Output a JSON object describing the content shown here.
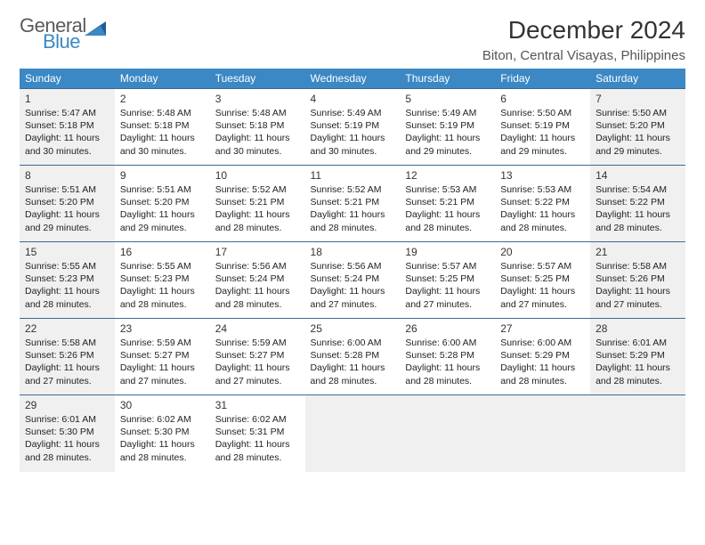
{
  "logo": {
    "word1": "General",
    "word2": "Blue",
    "word1_color": "#5a5a5a",
    "word2_color": "#3b88c4"
  },
  "title": "December 2024",
  "location": "Biton, Central Visayas, Philippines",
  "header_bg": "#3b88c4",
  "row_border": "#3b6a94",
  "shaded_bg": "#f0f0f0",
  "week_headers": [
    "Sunday",
    "Monday",
    "Tuesday",
    "Wednesday",
    "Thursday",
    "Friday",
    "Saturday"
  ],
  "weeks": [
    [
      {
        "n": "1",
        "shaded": true,
        "sr": "5:47 AM",
        "ss": "5:18 PM",
        "dl": "11 hours and 30 minutes."
      },
      {
        "n": "2",
        "shaded": false,
        "sr": "5:48 AM",
        "ss": "5:18 PM",
        "dl": "11 hours and 30 minutes."
      },
      {
        "n": "3",
        "shaded": false,
        "sr": "5:48 AM",
        "ss": "5:18 PM",
        "dl": "11 hours and 30 minutes."
      },
      {
        "n": "4",
        "shaded": false,
        "sr": "5:49 AM",
        "ss": "5:19 PM",
        "dl": "11 hours and 30 minutes."
      },
      {
        "n": "5",
        "shaded": false,
        "sr": "5:49 AM",
        "ss": "5:19 PM",
        "dl": "11 hours and 29 minutes."
      },
      {
        "n": "6",
        "shaded": false,
        "sr": "5:50 AM",
        "ss": "5:19 PM",
        "dl": "11 hours and 29 minutes."
      },
      {
        "n": "7",
        "shaded": true,
        "sr": "5:50 AM",
        "ss": "5:20 PM",
        "dl": "11 hours and 29 minutes."
      }
    ],
    [
      {
        "n": "8",
        "shaded": true,
        "sr": "5:51 AM",
        "ss": "5:20 PM",
        "dl": "11 hours and 29 minutes."
      },
      {
        "n": "9",
        "shaded": false,
        "sr": "5:51 AM",
        "ss": "5:20 PM",
        "dl": "11 hours and 29 minutes."
      },
      {
        "n": "10",
        "shaded": false,
        "sr": "5:52 AM",
        "ss": "5:21 PM",
        "dl": "11 hours and 28 minutes."
      },
      {
        "n": "11",
        "shaded": false,
        "sr": "5:52 AM",
        "ss": "5:21 PM",
        "dl": "11 hours and 28 minutes."
      },
      {
        "n": "12",
        "shaded": false,
        "sr": "5:53 AM",
        "ss": "5:21 PM",
        "dl": "11 hours and 28 minutes."
      },
      {
        "n": "13",
        "shaded": false,
        "sr": "5:53 AM",
        "ss": "5:22 PM",
        "dl": "11 hours and 28 minutes."
      },
      {
        "n": "14",
        "shaded": true,
        "sr": "5:54 AM",
        "ss": "5:22 PM",
        "dl": "11 hours and 28 minutes."
      }
    ],
    [
      {
        "n": "15",
        "shaded": true,
        "sr": "5:55 AM",
        "ss": "5:23 PM",
        "dl": "11 hours and 28 minutes."
      },
      {
        "n": "16",
        "shaded": false,
        "sr": "5:55 AM",
        "ss": "5:23 PM",
        "dl": "11 hours and 28 minutes."
      },
      {
        "n": "17",
        "shaded": false,
        "sr": "5:56 AM",
        "ss": "5:24 PM",
        "dl": "11 hours and 28 minutes."
      },
      {
        "n": "18",
        "shaded": false,
        "sr": "5:56 AM",
        "ss": "5:24 PM",
        "dl": "11 hours and 27 minutes."
      },
      {
        "n": "19",
        "shaded": false,
        "sr": "5:57 AM",
        "ss": "5:25 PM",
        "dl": "11 hours and 27 minutes."
      },
      {
        "n": "20",
        "shaded": false,
        "sr": "5:57 AM",
        "ss": "5:25 PM",
        "dl": "11 hours and 27 minutes."
      },
      {
        "n": "21",
        "shaded": true,
        "sr": "5:58 AM",
        "ss": "5:26 PM",
        "dl": "11 hours and 27 minutes."
      }
    ],
    [
      {
        "n": "22",
        "shaded": true,
        "sr": "5:58 AM",
        "ss": "5:26 PM",
        "dl": "11 hours and 27 minutes."
      },
      {
        "n": "23",
        "shaded": false,
        "sr": "5:59 AM",
        "ss": "5:27 PM",
        "dl": "11 hours and 27 minutes."
      },
      {
        "n": "24",
        "shaded": false,
        "sr": "5:59 AM",
        "ss": "5:27 PM",
        "dl": "11 hours and 27 minutes."
      },
      {
        "n": "25",
        "shaded": false,
        "sr": "6:00 AM",
        "ss": "5:28 PM",
        "dl": "11 hours and 28 minutes."
      },
      {
        "n": "26",
        "shaded": false,
        "sr": "6:00 AM",
        "ss": "5:28 PM",
        "dl": "11 hours and 28 minutes."
      },
      {
        "n": "27",
        "shaded": false,
        "sr": "6:00 AM",
        "ss": "5:29 PM",
        "dl": "11 hours and 28 minutes."
      },
      {
        "n": "28",
        "shaded": true,
        "sr": "6:01 AM",
        "ss": "5:29 PM",
        "dl": "11 hours and 28 minutes."
      }
    ],
    [
      {
        "n": "29",
        "shaded": true,
        "sr": "6:01 AM",
        "ss": "5:30 PM",
        "dl": "11 hours and 28 minutes."
      },
      {
        "n": "30",
        "shaded": false,
        "sr": "6:02 AM",
        "ss": "5:30 PM",
        "dl": "11 hours and 28 minutes."
      },
      {
        "n": "31",
        "shaded": false,
        "sr": "6:02 AM",
        "ss": "5:31 PM",
        "dl": "11 hours and 28 minutes."
      },
      {
        "empty": true
      },
      {
        "empty": true
      },
      {
        "empty": true
      },
      {
        "empty": true
      }
    ]
  ],
  "labels": {
    "sunrise": "Sunrise:",
    "sunset": "Sunset:",
    "daylight": "Daylight:"
  }
}
